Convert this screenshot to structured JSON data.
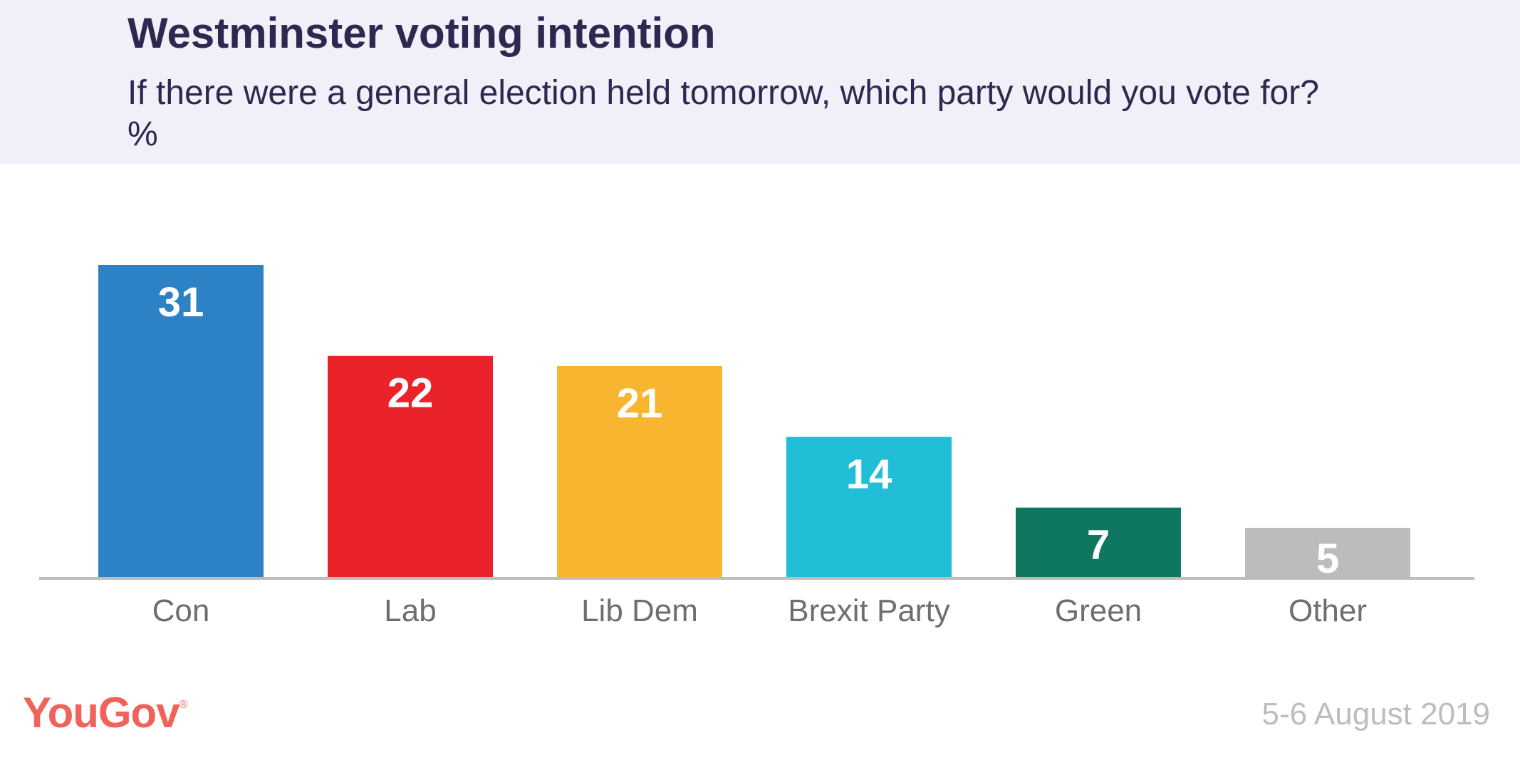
{
  "header": {
    "title": "Westminster voting intention",
    "subtitle": "If there were a general election held tomorrow, which party would you vote for? %"
  },
  "footer": {
    "logo_text": "YouGov",
    "logo_mark": "®",
    "date": "5-6 August 2019"
  },
  "colors": {
    "header_bg": "#f1eff7",
    "title": "#2c2850",
    "axis": "#bdbdbd",
    "label": "#6e6e6e",
    "logo": "#f0625a"
  },
  "chart_data": {
    "type": "bar",
    "title": "Westminster voting intention",
    "subtitle": "If there were a general election held tomorrow, which party would you vote for? %",
    "categories": [
      "Con",
      "Lab",
      "Lib Dem",
      "Brexit Party",
      "Green",
      "Other"
    ],
    "values": [
      31,
      22,
      21,
      14,
      7,
      5
    ],
    "colors": [
      "#2d82c6",
      "#ea232a",
      "#f8b52f",
      "#22bdd6",
      "#0f7660",
      "#bdbcbc"
    ],
    "ylim": [
      0,
      31
    ],
    "grid": false,
    "legend": "none",
    "data_labels": true
  }
}
